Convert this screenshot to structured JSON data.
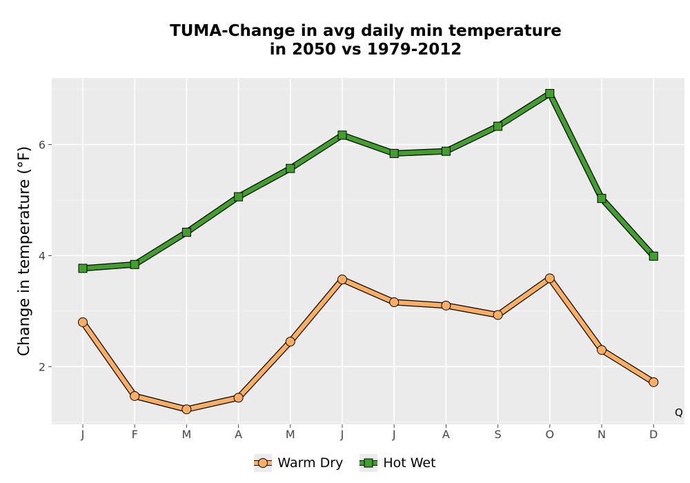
{
  "chart_data": {
    "type": "line",
    "title_line1": "TUMA-Change in avg daily min temperature",
    "title_line2": "in 2050 vs 1979-2012",
    "xlabel": "",
    "ylabel": "Change in temperature (°F)",
    "categories": [
      "J",
      "F",
      "M",
      "A",
      "M",
      "J",
      "J",
      "A",
      "S",
      "O",
      "N",
      "D"
    ],
    "ylim": [
      0.96,
      7.2
    ],
    "yticks": [
      2,
      4,
      6
    ],
    "grid": true,
    "legend_position": "bottom",
    "series": [
      {
        "name": "Warm Dry",
        "color": "#fdae61",
        "marker": "circle",
        "values": [
          2.8,
          1.47,
          1.23,
          1.44,
          2.45,
          3.57,
          3.16,
          3.1,
          2.93,
          3.59,
          2.3,
          1.72
        ]
      },
      {
        "name": "Hot Wet",
        "color": "#41a02c",
        "marker": "square",
        "values": [
          3.77,
          3.84,
          4.42,
          5.06,
          5.57,
          6.17,
          5.84,
          5.88,
          6.33,
          6.92,
          5.03,
          3.99
        ]
      }
    ],
    "corner_label": "Q"
  }
}
